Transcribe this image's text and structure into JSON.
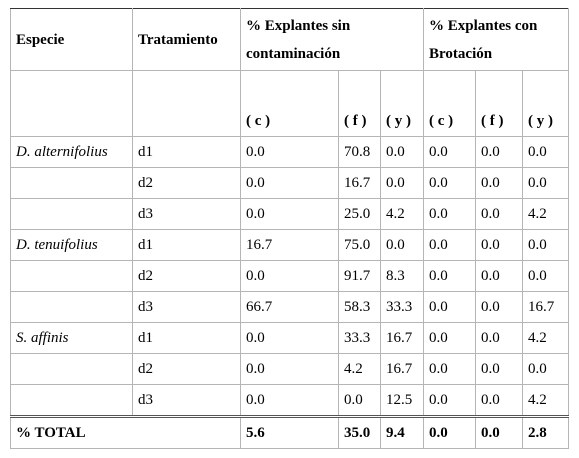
{
  "table": {
    "header": [
      "Especie",
      "Tratamiento",
      "% Explantes sin contaminación",
      "% Explantes con Brotación"
    ],
    "subheader": [
      "( c )",
      "( f )",
      "( y )",
      "( c )",
      "( f )",
      "( y )"
    ],
    "groups": [
      {
        "species": "D. alternifolius",
        "rows": [
          [
            "d1",
            "0.0",
            "70.8",
            "0.0",
            "0.0",
            "0.0",
            "0.0"
          ],
          [
            "d2",
            "0.0",
            "16.7",
            "0.0",
            "0.0",
            "0.0",
            "0.0"
          ],
          [
            "d3",
            "0.0",
            "25.0",
            "4.2",
            "0.0",
            "0.0",
            "4.2"
          ]
        ]
      },
      {
        "species": "D. tenuifolius",
        "rows": [
          [
            "d1",
            "16.7",
            "75.0",
            "0.0",
            "0.0",
            "0.0",
            "0.0"
          ],
          [
            "d2",
            "0.0",
            "91.7",
            "8.3",
            "0.0",
            "0.0",
            "0.0"
          ],
          [
            "d3",
            "66.7",
            "58.3",
            "33.3",
            "0.0",
            "0.0",
            "16.7"
          ]
        ]
      },
      {
        "species": "S. affinis",
        "rows": [
          [
            "d1",
            "0.0",
            "33.3",
            "16.7",
            "0.0",
            "0.0",
            "4.2"
          ],
          [
            "d2",
            "0.0",
            "4.2",
            "16.7",
            "0.0",
            "0.0",
            "0.0"
          ],
          [
            "d3",
            "0.0",
            "0.0",
            "12.5",
            "0.0",
            "0.0",
            "4.2"
          ]
        ]
      }
    ],
    "total": {
      "label": "% TOTAL",
      "values": [
        "5.6",
        "35.0",
        "9.4",
        "0.0",
        "0.0",
        "2.8"
      ]
    }
  }
}
